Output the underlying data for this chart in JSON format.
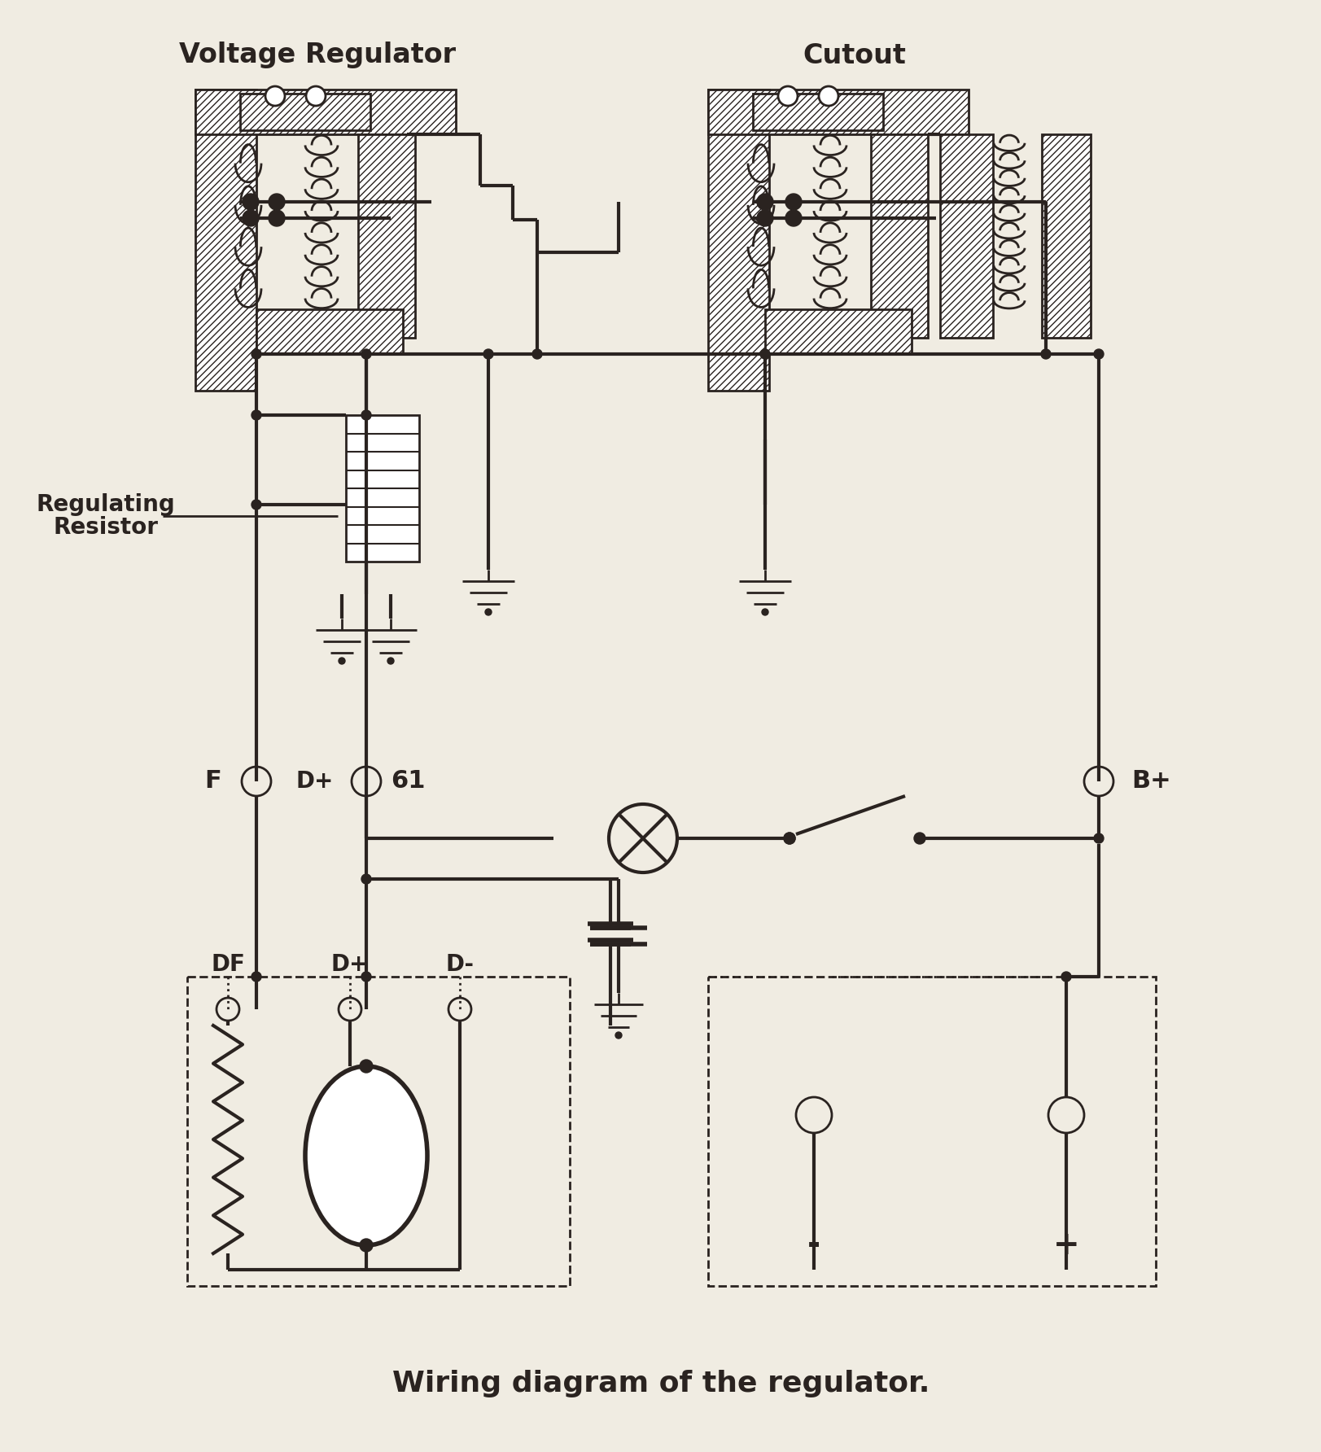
{
  "bg_color": "#f0ece2",
  "line_color": "#2a2320",
  "title": "Wiring diagram of the regulator.",
  "label_voltage_reg": "Voltage Regulator",
  "label_cutout": "Cutout",
  "label_reg_resistor1": "Regulating",
  "label_reg_resistor2": "Resistor",
  "label_F": "F",
  "label_Dplus": "D+",
  "label_61": "61",
  "label_Bplus": "B+",
  "label_DF": "DF",
  "label_Dplus2": "D+",
  "label_Dminus": "D-",
  "label_minus": "-",
  "label_plus": "+",
  "figsize": [
    16.24,
    17.84
  ],
  "dpi": 100
}
